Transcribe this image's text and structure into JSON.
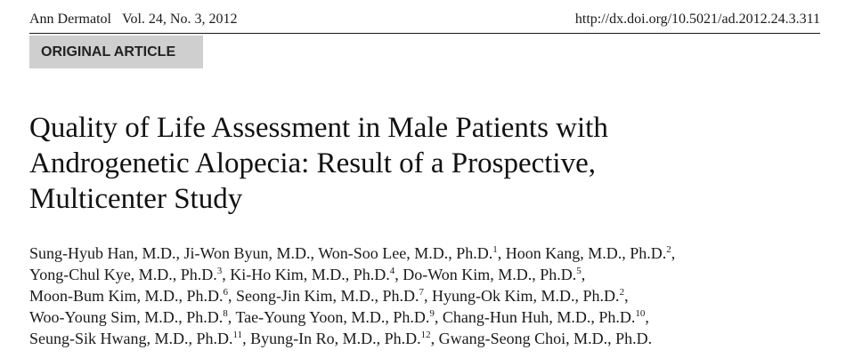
{
  "header": {
    "journal": "Ann Dermatol",
    "volume": "Vol. 24, No. 3, 2012",
    "doi": "http://dx.doi.org/10.5021/ad.2012.24.3.311"
  },
  "article_type": "ORIGINAL ARTICLE",
  "title_lines": [
    "Quality of Life Assessment in Male Patients with",
    "Androgenetic Alopecia: Result of a Prospective,",
    "Multicenter Study"
  ],
  "author_lines": [
    [
      {
        "text": "Sung-Hyub Han, M.D., Ji-Won Byun, M.D., Won-Soo Lee, M.D., Ph.D.",
        "sup": "1"
      },
      {
        "text": ", Hoon Kang, M.D., Ph.D.",
        "sup": "2"
      },
      {
        "text": ",",
        "sup": ""
      }
    ],
    [
      {
        "text": "Yong-Chul Kye, M.D., Ph.D.",
        "sup": "3"
      },
      {
        "text": ", Ki-Ho Kim, M.D., Ph.D.",
        "sup": "4"
      },
      {
        "text": ", Do-Won Kim, M.D., Ph.D.",
        "sup": "5"
      },
      {
        "text": ",",
        "sup": ""
      }
    ],
    [
      {
        "text": "Moon-Bum Kim, M.D., Ph.D.",
        "sup": "6"
      },
      {
        "text": ", Seong-Jin Kim, M.D., Ph.D.",
        "sup": "7"
      },
      {
        "text": ", Hyung-Ok Kim, M.D., Ph.D.",
        "sup": "2"
      },
      {
        "text": ",",
        "sup": ""
      }
    ],
    [
      {
        "text": "Woo-Young Sim, M.D., Ph.D.",
        "sup": "8"
      },
      {
        "text": ", Tae-Young Yoon, M.D., Ph.D.",
        "sup": "9"
      },
      {
        "text": ", Chang-Hun Huh, M.D., Ph.D.",
        "sup": "10"
      },
      {
        "text": ",",
        "sup": ""
      }
    ],
    [
      {
        "text": "Seung-Sik Hwang, M.D., Ph.D.",
        "sup": "11"
      },
      {
        "text": ", Byung-In Ro, M.D., Ph.D.",
        "sup": "12"
      },
      {
        "text": ", Gwang-Seong Choi, M.D., Ph.D.",
        "sup": ""
      }
    ]
  ]
}
